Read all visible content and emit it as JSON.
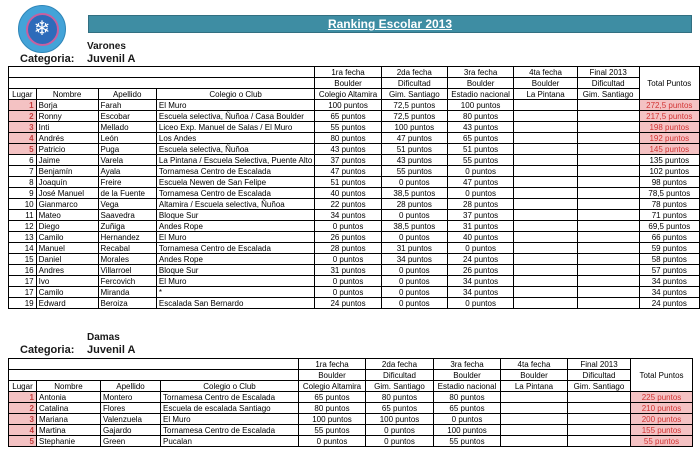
{
  "banner": {
    "title": "Ranking Escolar 2013"
  },
  "logo": {
    "icon": "snowflake-icon",
    "glyph": "❄"
  },
  "colors": {
    "banner_teal": "#3e8da3",
    "header_orange": "#f5a73b",
    "cell_cyan": "#daf1f6",
    "highlight_pink": "#f4c2c3",
    "fecha_red": "#fe0000",
    "total_red": "#e02e2e"
  },
  "sections": [
    {
      "gender_label": "Varones",
      "category_label": "Categoria:",
      "category_value": "Juvenil A",
      "table": {
        "left_headers": [
          "Lugar",
          "Nombre",
          "Apellido",
          "Colegio o Club"
        ],
        "event_columns": [
          {
            "fecha": "1ra fecha",
            "discipline": "Boulder",
            "venue": "Colegio Altamira"
          },
          {
            "fecha": "2da fecha",
            "discipline": "Dificultad",
            "venue": "Gim. Santiago"
          },
          {
            "fecha": "3ra fecha",
            "discipline": "Boulder",
            "venue": "Estadio nacional"
          },
          {
            "fecha": "4ta fecha",
            "discipline": "Boulder",
            "venue": "La Pintana"
          },
          {
            "fecha": "Final 2013",
            "discipline": "Dificultad",
            "venue": "Gim. Santiago"
          }
        ],
        "total_header": "Total Puntos",
        "rows": [
          {
            "lugar": "1",
            "nombre": "Borja",
            "apellido": "Farah",
            "club": "El Muro",
            "points": [
              "100 puntos",
              "72,5 puntos",
              "100 puntos",
              "",
              ""
            ],
            "total": "272,5 puntos",
            "top5": true
          },
          {
            "lugar": "2",
            "nombre": "Ronny",
            "apellido": "Escobar",
            "club": "Escuela selectiva, Ñuñoa / Casa Boulder",
            "points": [
              "65 puntos",
              "72,5 puntos",
              "80 puntos",
              "",
              ""
            ],
            "total": "217,5 puntos",
            "top5": true
          },
          {
            "lugar": "3",
            "nombre": "Inti",
            "apellido": "Mellado",
            "club": "Liceo Exp. Manuel de Salas / El Muro",
            "points": [
              "55 puntos",
              "100 puntos",
              "43 puntos",
              "",
              ""
            ],
            "total": "198 puntos",
            "top5": true
          },
          {
            "lugar": "4",
            "nombre": "Andrés",
            "apellido": "León",
            "club": "Los Andes",
            "points": [
              "80 puntos",
              "47 puntos",
              "65 puntos",
              "",
              ""
            ],
            "total": "192 puntos",
            "top5": true
          },
          {
            "lugar": "5",
            "nombre": "Patricio",
            "apellido": "Puga",
            "club": "Escuela selectiva, Ñuñoa",
            "points": [
              "43 puntos",
              "51 puntos",
              "51 puntos",
              "",
              ""
            ],
            "total": "145 puntos",
            "top5": true
          },
          {
            "lugar": "6",
            "nombre": "Jaime",
            "apellido": "Varela",
            "club": "La Pintana / Escuela Selectiva, Puente Alto",
            "points": [
              "37 puntos",
              "43 puntos",
              "55 puntos",
              "",
              ""
            ],
            "total": "135 puntos",
            "top5": false
          },
          {
            "lugar": "7",
            "nombre": "Benjamín",
            "apellido": "Ayala",
            "club": "Tornamesa Centro de Escalada",
            "points": [
              "47 puntos",
              "55 puntos",
              "0 puntos",
              "",
              ""
            ],
            "total": "102 puntos",
            "top5": false
          },
          {
            "lugar": "8",
            "nombre": "Joaquín",
            "apellido": "Freire",
            "club": "Escuela Newen de San Felipe",
            "points": [
              "51 puntos",
              "0 puntos",
              "47 puntos",
              "",
              ""
            ],
            "total": "98 puntos",
            "top5": false
          },
          {
            "lugar": "9",
            "nombre": "José Manuel",
            "apellido": "de la Fuente",
            "club": "Tornamesa Centro de Escalada",
            "points": [
              "40 puntos",
              "38,5 puntos",
              "0 puntos",
              "",
              ""
            ],
            "total": "78,5 puntos",
            "top5": false
          },
          {
            "lugar": "10",
            "nombre": "Gianmarco",
            "apellido": "Vega",
            "club": "Altamira / Escuela selectiva, Ñuñoa",
            "points": [
              "22 puntos",
              "28 puntos",
              "28 puntos",
              "",
              ""
            ],
            "total": "78 puntos",
            "top5": false
          },
          {
            "lugar": "11",
            "nombre": "Mateo",
            "apellido": "Saavedra",
            "club": "Bloque Sur",
            "points": [
              "34 puntos",
              "0 puntos",
              "37 puntos",
              "",
              ""
            ],
            "total": "71 puntos",
            "top5": false
          },
          {
            "lugar": "12",
            "nombre": "Diego",
            "apellido": "Zuñiga",
            "club": "Andes Rope",
            "points": [
              "0 puntos",
              "38,5 puntos",
              "31 puntos",
              "",
              ""
            ],
            "total": "69,5 puntos",
            "top5": false
          },
          {
            "lugar": "13",
            "nombre": "Camilo",
            "apellido": "Hernandez",
            "club": "El Muro",
            "points": [
              "26 puntos",
              "0 puntos",
              "40 puntos",
              "",
              ""
            ],
            "total": "66 puntos",
            "top5": false
          },
          {
            "lugar": "14",
            "nombre": "Manuel",
            "apellido": "Recabal",
            "club": "Tornamesa Centro de Escalada",
            "points": [
              "28 puntos",
              "31 puntos",
              "0 puntos",
              "",
              ""
            ],
            "total": "59 puntos",
            "top5": false
          },
          {
            "lugar": "15",
            "nombre": "Daniel",
            "apellido": "Morales",
            "club": "Andes Rope",
            "points": [
              "0 puntos",
              "34 puntos",
              "24 puntos",
              "",
              ""
            ],
            "total": "58 puntos",
            "top5": false
          },
          {
            "lugar": "16",
            "nombre": "Andres",
            "apellido": "Villarroel",
            "club": "Bloque Sur",
            "points": [
              "31 puntos",
              "0 puntos",
              "26 puntos",
              "",
              ""
            ],
            "total": "57 puntos",
            "top5": false
          },
          {
            "lugar": "17",
            "nombre": "Ivo",
            "apellido": "Fercovich",
            "club": "El Muro",
            "points": [
              "0 puntos",
              "0 puntos",
              "34 puntos",
              "",
              ""
            ],
            "total": "34 puntos",
            "top5": false
          },
          {
            "lugar": "17",
            "nombre": "Camilo",
            "apellido": "Miranda",
            "club": "*",
            "points": [
              "0 puntos",
              "0 puntos",
              "34 puntos",
              "",
              ""
            ],
            "total": "34 puntos",
            "top5": false
          },
          {
            "lugar": "19",
            "nombre": "Edward",
            "apellido": "Beroiza",
            "club": "Escalada San Bernardo",
            "points": [
              "24 puntos",
              "0 puntos",
              "0 puntos",
              "",
              ""
            ],
            "total": "24 puntos",
            "top5": false
          }
        ]
      }
    },
    {
      "gender_label": "Damas",
      "category_label": "Categoria:",
      "category_value": "Juvenil A",
      "table": {
        "left_headers": [
          "Lugar",
          "Nombre",
          "Apellido",
          "Colegio o Club"
        ],
        "event_columns": [
          {
            "fecha": "1ra fecha",
            "discipline": "Boulder",
            "venue": "Colegio Altamira"
          },
          {
            "fecha": "2da fecha",
            "discipline": "Dificultad",
            "venue": "Gim. Santiago"
          },
          {
            "fecha": "3ra fecha",
            "discipline": "Boulder",
            "venue": "Estadio nacional"
          },
          {
            "fecha": "4ta fecha",
            "discipline": "Boulder",
            "venue": "La Pintana"
          },
          {
            "fecha": "Final 2013",
            "discipline": "Dificultad",
            "venue": "Gim. Santiago"
          }
        ],
        "total_header": "Total Puntos",
        "rows": [
          {
            "lugar": "1",
            "nombre": "Antonia",
            "apellido": "Montero",
            "club": "Tornamesa Centro de Escalada",
            "points": [
              "65 puntos",
              "80 puntos",
              "80 puntos",
              "",
              ""
            ],
            "total": "225 puntos",
            "top5": true
          },
          {
            "lugar": "2",
            "nombre": "Catalina",
            "apellido": "Flores",
            "club": "Escuela de escalada Santiago",
            "points": [
              "80 puntos",
              "65 puntos",
              "65 puntos",
              "",
              ""
            ],
            "total": "210 puntos",
            "top5": true
          },
          {
            "lugar": "3",
            "nombre": "Mariana",
            "apellido": "Valenzuela",
            "club": "El Muro",
            "points": [
              "100 puntos",
              "100 puntos",
              "0 puntos",
              "",
              ""
            ],
            "total": "200 puntos",
            "top5": true
          },
          {
            "lugar": "4",
            "nombre": "Martina",
            "apellido": "Gajardo",
            "club": "Tornamesa Centro de Escalada",
            "points": [
              "55 puntos",
              "0 puntos",
              "100 puntos",
              "",
              ""
            ],
            "total": "155 puntos",
            "top5": true
          },
          {
            "lugar": "5",
            "nombre": "Stephanie",
            "apellido": "Green",
            "club": "Pucalan",
            "points": [
              "0 puntos",
              "0 puntos",
              "55 puntos",
              "",
              ""
            ],
            "total": "55 puntos",
            "top5": true
          }
        ]
      }
    }
  ]
}
